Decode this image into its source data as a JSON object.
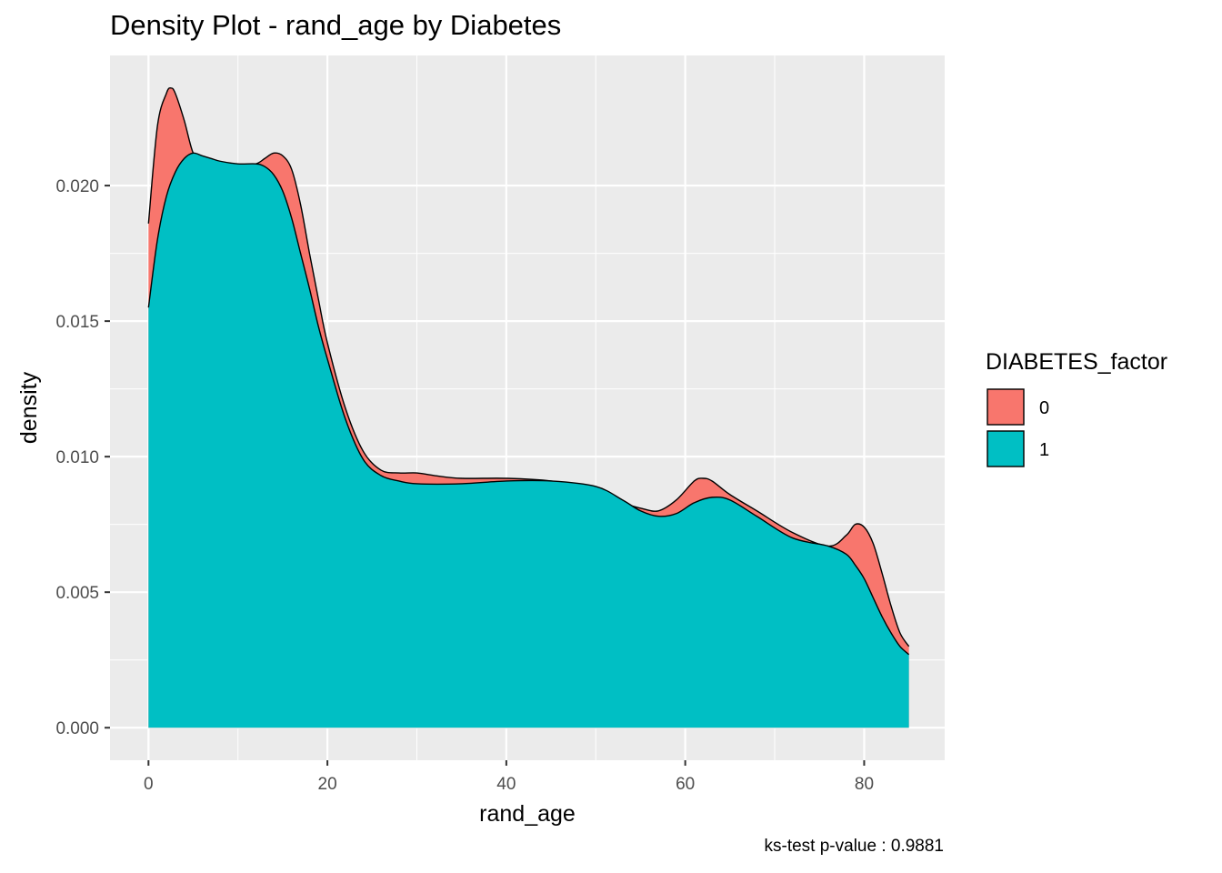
{
  "chart_data": {
    "type": "area",
    "title": "Density Plot - rand_age by Diabetes",
    "xlabel": "rand_age",
    "ylabel": "density",
    "caption": "ks-test p-value : 0.9881",
    "xlim": [
      -4.3,
      89
    ],
    "ylim": [
      -0.0012,
      0.0248
    ],
    "x_ticks": [
      0,
      20,
      40,
      60,
      80
    ],
    "x_tick_labels": [
      "0",
      "20",
      "40",
      "60",
      "80"
    ],
    "y_ticks": [
      0,
      0.005,
      0.01,
      0.015,
      0.02
    ],
    "y_tick_labels": [
      "0.000",
      "0.005",
      "0.010",
      "0.015",
      "0.020"
    ],
    "grid": true,
    "legend": {
      "title": "DIABETES_factor",
      "position": "right",
      "entries": [
        {
          "label": "0",
          "color": "#F8766D"
        },
        {
          "label": "1",
          "color": "#00BFC4"
        }
      ]
    },
    "series": [
      {
        "name": "0",
        "color": "#F8766D",
        "x": [
          0,
          1,
          2,
          2.5,
          3,
          4,
          5,
          6,
          8,
          10,
          12,
          13,
          14,
          15,
          16,
          17,
          18,
          19,
          20,
          22,
          24,
          26,
          28,
          30,
          32,
          35,
          40,
          45,
          50,
          53,
          55,
          57,
          59,
          61,
          62,
          63,
          65,
          68,
          72,
          76,
          78,
          79,
          80,
          81,
          82,
          83,
          84,
          85
        ],
        "y": [
          0.0186,
          0.0222,
          0.0234,
          0.0236,
          0.0234,
          0.0224,
          0.0212,
          0.021,
          0.0208,
          0.0207,
          0.0208,
          0.021,
          0.0212,
          0.0211,
          0.0206,
          0.0193,
          0.0175,
          0.0158,
          0.0142,
          0.0118,
          0.0102,
          0.0095,
          0.0094,
          0.0094,
          0.0093,
          0.0092,
          0.0092,
          0.0091,
          0.0088,
          0.0083,
          0.0081,
          0.008,
          0.0084,
          0.0091,
          0.0092,
          0.0091,
          0.0086,
          0.008,
          0.0072,
          0.0067,
          0.0071,
          0.0075,
          0.0074,
          0.0068,
          0.0057,
          0.0045,
          0.0035,
          0.003
        ]
      },
      {
        "name": "1",
        "color": "#00BFC4",
        "x": [
          0,
          1,
          2,
          3,
          4,
          5,
          6,
          7,
          8,
          10,
          12,
          13,
          14,
          15,
          16,
          17,
          18,
          19,
          20,
          22,
          24,
          26,
          28,
          30,
          35,
          40,
          45,
          50,
          53,
          55,
          57,
          59,
          61,
          63,
          65,
          68,
          72,
          76,
          78,
          79,
          80,
          81,
          82,
          83,
          84,
          85
        ],
        "y": [
          0.0155,
          0.018,
          0.0196,
          0.0205,
          0.021,
          0.0212,
          0.0211,
          0.021,
          0.0209,
          0.0208,
          0.0208,
          0.0207,
          0.0204,
          0.0198,
          0.0188,
          0.0175,
          0.0162,
          0.0148,
          0.0136,
          0.0114,
          0.0099,
          0.0093,
          0.0091,
          0.009,
          0.009,
          0.0091,
          0.0091,
          0.0089,
          0.0084,
          0.008,
          0.0078,
          0.0079,
          0.0083,
          0.0085,
          0.0084,
          0.0078,
          0.007,
          0.0067,
          0.0064,
          0.006,
          0.0055,
          0.0048,
          0.0041,
          0.0035,
          0.003,
          0.0027
        ]
      }
    ]
  }
}
